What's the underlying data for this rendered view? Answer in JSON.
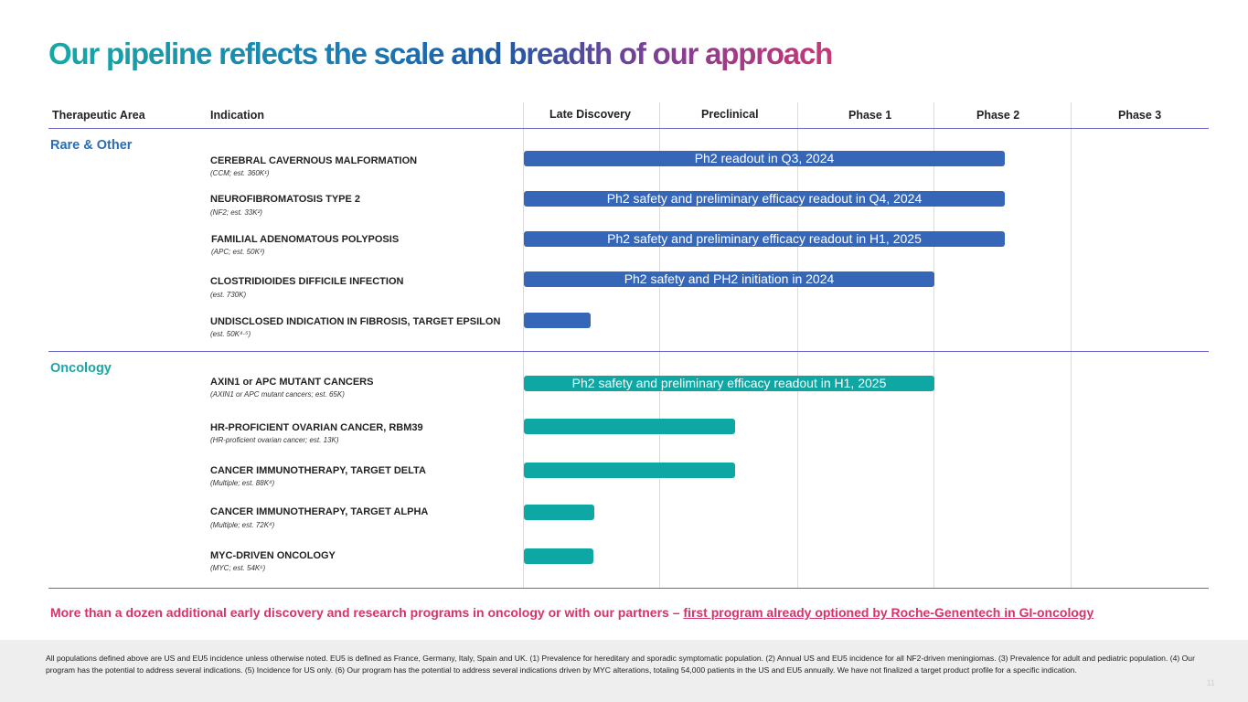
{
  "title": "Our pipeline reflects the scale and breadth of our approach",
  "headers": {
    "therapeutic_area": "Therapeutic Area",
    "indication": "Indication",
    "late_discovery": "Late Discovery",
    "preclinical": "Preclinical",
    "phase1": "Phase 1",
    "phase2": "Phase 2",
    "phase3": "Phase 3"
  },
  "sections": {
    "rare": "Rare & Other",
    "oncology": "Oncology"
  },
  "colors": {
    "rare_bar": "#3566b7",
    "oncology_bar": "#0ea7a4",
    "accent": "#d4336e"
  },
  "indications": [
    {
      "name": "CEREBRAL CAVERNOUS MALFORMATION",
      "sub": "(CCM; est. 360K¹)",
      "bar_label": "Ph2 readout in Q3, 2024",
      "progress": "Phase 2"
    },
    {
      "name": "NEUROFIBROMATOSIS TYPE 2",
      "sub": "(NF2; est. 33K²)",
      "bar_label": "Ph2 safety and preliminary efficacy readout in Q4, 2024",
      "progress": "Phase 2"
    },
    {
      "name": "FAMILIAL ADENOMATOUS POLYPOSIS",
      "sub": "(APC; est. 50K³)",
      "bar_label": "Ph2 safety and preliminary efficacy readout in H1, 2025",
      "progress": "Phase 2"
    },
    {
      "name": "CLOSTRIDIOIDES DIFFICILE INFECTION",
      "sub": "(est. 730K)",
      "bar_label": "Ph2 safety and PH2 initiation in 2024",
      "progress": "Phase 1"
    },
    {
      "name": "UNDISCLOSED INDICATION IN FIBROSIS, TARGET EPSILON",
      "sub": "(est. 50K⁴·⁵)",
      "bar_label": "",
      "progress": "Late Discovery"
    },
    {
      "name": "AXIN1 or APC MUTANT CANCERS",
      "sub": "(AXIN1 or APC mutant cancers; est. 65K)",
      "bar_label": "Ph2 safety and preliminary efficacy readout in H1, 2025",
      "progress": "Phase 1"
    },
    {
      "name": "HR-PROFICIENT OVARIAN CANCER, RBM39",
      "sub": "(HR-proficient ovarian cancer; est. 13K)",
      "bar_label": "",
      "progress": "Preclinical"
    },
    {
      "name": "CANCER IMMUNOTHERAPY, TARGET DELTA",
      "sub": "(Multiple; est. 88K⁴)",
      "bar_label": "",
      "progress": "Preclinical"
    },
    {
      "name": "CANCER IMMUNOTHERAPY, TARGET ALPHA",
      "sub": "(Multiple; est. 72K⁴)",
      "bar_label": "",
      "progress": "Late Discovery"
    },
    {
      "name": "MYC-DRIVEN ONCOLOGY",
      "sub": "(MYC; est. 54K⁶)",
      "bar_label": "",
      "progress": "Late Discovery"
    }
  ],
  "note": {
    "prefix": "More than a dozen additional early discovery and research programs in oncology or with our partners – ",
    "link": "first program already optioned by Roche-Genentech in GI-oncology"
  },
  "footnote": "All populations defined above are US and EU5 incidence unless otherwise noted. EU5 is defined as France, Germany, Italy, Spain and UK. (1) Prevalence for hereditary and sporadic symptomatic population. (2) Annual US and EU5 incidence for all NF2-driven meningiomas. (3) Prevalence for adult and pediatric population. (4) Our program has the potential to address several indications. (5) Incidence for US only. (6) Our program has the potential to address several indications driven by MYC alterations, totaling 54,000 patients in the US and EU5 annually. We have not finalized a target product profile for a specific indication.",
  "page_number": "11"
}
